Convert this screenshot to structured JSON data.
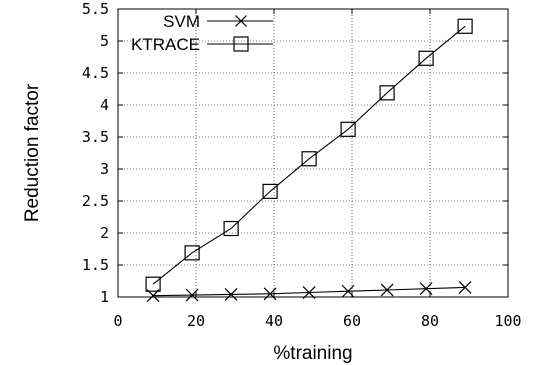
{
  "chart_data": {
    "type": "line",
    "title": "",
    "xlabel": "%training",
    "ylabel": "Reduction factor",
    "xlim": [
      0,
      100
    ],
    "ylim": [
      1,
      5.5
    ],
    "xticks": [
      "0",
      "20",
      "40",
      "60",
      "80",
      "100"
    ],
    "yticks": [
      "1",
      "1.5",
      "2",
      "2.5",
      "3",
      "3.5",
      "4",
      "4.5",
      "5",
      "5.5"
    ],
    "grid": true,
    "legend_position": "top-left",
    "x": [
      9,
      19,
      29,
      39,
      49,
      59,
      69,
      79,
      89
    ],
    "series": [
      {
        "name": "SVM",
        "marker": "cross",
        "values": [
          1.02,
          1.03,
          1.04,
          1.05,
          1.07,
          1.09,
          1.11,
          1.13,
          1.15
        ]
      },
      {
        "name": "KTRACE",
        "marker": "square",
        "values": [
          1.2,
          1.69,
          2.07,
          2.65,
          3.16,
          3.62,
          4.19,
          4.73,
          5.23
        ]
      }
    ]
  }
}
